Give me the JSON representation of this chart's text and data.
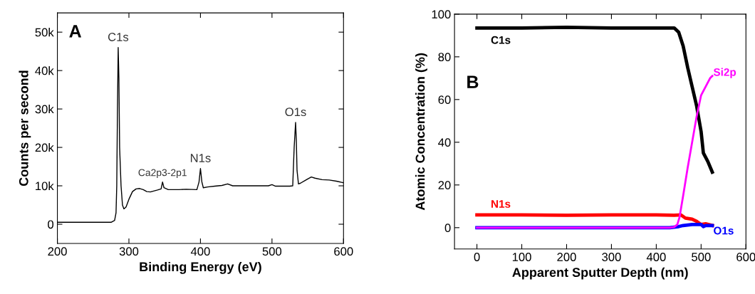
{
  "chart_data": [
    {
      "type": "line",
      "xlabel": "Binding Energy (eV)",
      "ylabel": "Counts per second",
      "xlim": [
        200,
        600
      ],
      "ylim": [
        -5000,
        55000
      ],
      "xticks": [
        200,
        300,
        400,
        500,
        600
      ],
      "yticks": [
        0,
        {
          "value": 10000,
          "label": "10k"
        },
        {
          "value": 20000,
          "label": "20k"
        },
        {
          "value": 30000,
          "label": "30k"
        },
        {
          "value": 40000,
          "label": "40k"
        },
        {
          "value": 50000,
          "label": "50k"
        }
      ],
      "grid": false,
      "legend": false,
      "marker": "none",
      "line_style": "solid",
      "annotations": [
        "A",
        {
          "text": "C1s",
          "x": 285,
          "y": 46000
        },
        {
          "text": "Ca2p3-2p1",
          "x": 347,
          "y": 11000
        },
        {
          "text": "N1s",
          "x": 400,
          "y": 14500
        },
        {
          "text": "O1s",
          "x": 533,
          "y": 26500
        }
      ],
      "series": [
        {
          "color": "#000000",
          "x": [
            200,
            275,
            280,
            282,
            283,
            284,
            285,
            286,
            287,
            289,
            291,
            293,
            296,
            300,
            305,
            310,
            315,
            320,
            325,
            330,
            340,
            345,
            347,
            349,
            355,
            370,
            380,
            395,
            398,
            400,
            402,
            404,
            410,
            420,
            430,
            438,
            445,
            460,
            480,
            495,
            500,
            505,
            525,
            529,
            531,
            533,
            534,
            535,
            537,
            540,
            550,
            555,
            560,
            570,
            580,
            590,
            600
          ],
          "values": [
            500,
            500,
            1000,
            3000,
            10000,
            30000,
            46000,
            38000,
            20000,
            10000,
            5000,
            4000,
            4500,
            6500,
            8500,
            9200,
            9300,
            9000,
            8500,
            8400,
            8900,
            9200,
            11000,
            9500,
            9000,
            9000,
            9100,
            9000,
            11000,
            14500,
            11000,
            9500,
            9700,
            9900,
            10100,
            10500,
            10000,
            10000,
            10000,
            10000,
            10300,
            9900,
            9900,
            10000,
            20000,
            26500,
            22000,
            14000,
            10500,
            10700,
            11800,
            12300,
            12000,
            11600,
            11500,
            11200,
            10800
          ]
        }
      ]
    },
    {
      "type": "line",
      "xlabel": "Apparent Sputter Depth (nm)",
      "ylabel": "Atomic Concentration (%)",
      "xlim": [
        -50,
        600
      ],
      "ylim": [
        -10,
        100
      ],
      "xticks": [
        0,
        100,
        200,
        300,
        400,
        500,
        600
      ],
      "yticks": [
        0,
        20,
        40,
        60,
        80,
        100
      ],
      "grid": false,
      "legend": false,
      "marker": "none",
      "line_style": "solid",
      "annotations": [
        "B"
      ],
      "series": [
        {
          "name": "C1s",
          "color": "#000000",
          "x": [
            0,
            50,
            100,
            200,
            300,
            400,
            440,
            450,
            460,
            470,
            480,
            490,
            500,
            505,
            515,
            525
          ],
          "values": [
            93.5,
            93.5,
            93.5,
            93.8,
            93.5,
            93.5,
            93.5,
            91.5,
            85,
            75,
            66,
            57,
            45,
            35,
            31,
            26
          ]
        },
        {
          "name": "N1s",
          "color": "#ff0000",
          "x": [
            0,
            100,
            200,
            300,
            400,
            440,
            455,
            465,
            480,
            490,
            500,
            510,
            525
          ],
          "values": [
            6,
            6,
            5.8,
            6,
            6,
            5.8,
            6,
            4.5,
            4,
            3,
            1.5,
            1.8,
            1
          ]
        },
        {
          "name": "O1s",
          "color": "#0000ff",
          "x": [
            0,
            430,
            450,
            460,
            480,
            500,
            505,
            510,
            525
          ],
          "values": [
            0,
            0,
            0.5,
            1,
            1.5,
            1.5,
            0.5,
            1,
            1
          ]
        },
        {
          "name": "Si2p",
          "color": "#ff00ff",
          "x": [
            0,
            430,
            440,
            447,
            452,
            460,
            470,
            480,
            490,
            500,
            510,
            520,
            525
          ],
          "values": [
            0,
            0,
            0.3,
            1.5,
            5,
            15,
            28,
            40,
            52,
            62,
            66,
            70,
            71
          ]
        }
      ]
    }
  ]
}
